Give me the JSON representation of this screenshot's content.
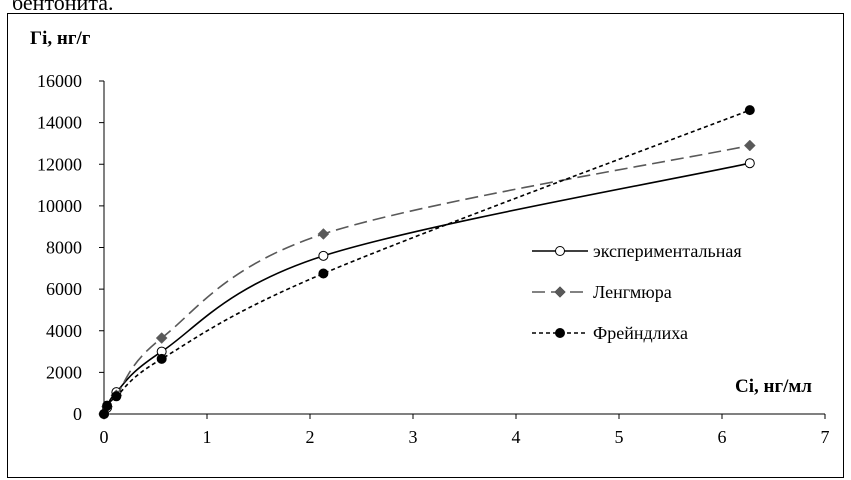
{
  "page": {
    "top_fragment": "бентонита."
  },
  "chart_data": {
    "type": "line",
    "ylabel": "Гі, нг/г",
    "xlabel": "Сі, нг/мл",
    "xlim": [
      0,
      7
    ],
    "ylim": [
      0,
      16000
    ],
    "x_ticks": [
      0,
      1,
      2,
      3,
      4,
      5,
      6,
      7
    ],
    "y_ticks": [
      0,
      2000,
      4000,
      6000,
      8000,
      10000,
      12000,
      14000,
      16000
    ],
    "grid": false,
    "legend_position": "right",
    "series": [
      {
        "name": "экспериментальная",
        "line_style": "solid",
        "marker": "open-circle",
        "color": "#000000",
        "x": [
          0,
          0.03,
          0.12,
          0.56,
          2.13,
          6.27
        ],
        "y": [
          0,
          300,
          1050,
          3000,
          7600,
          12050
        ]
      },
      {
        "name": "Ленгмюра",
        "line_style": "long-dash",
        "marker": "diamond",
        "color": "#595959",
        "x": [
          0,
          0.03,
          0.12,
          0.56,
          2.13,
          6.27
        ],
        "y": [
          0,
          350,
          900,
          3650,
          8650,
          12900
        ]
      },
      {
        "name": "Фрейндлиха",
        "line_style": "short-dash",
        "marker": "filled-circle",
        "color": "#000000",
        "x": [
          0,
          0.03,
          0.12,
          0.56,
          2.13,
          6.27
        ],
        "y": [
          0,
          400,
          850,
          2650,
          6750,
          14600
        ]
      }
    ]
  }
}
